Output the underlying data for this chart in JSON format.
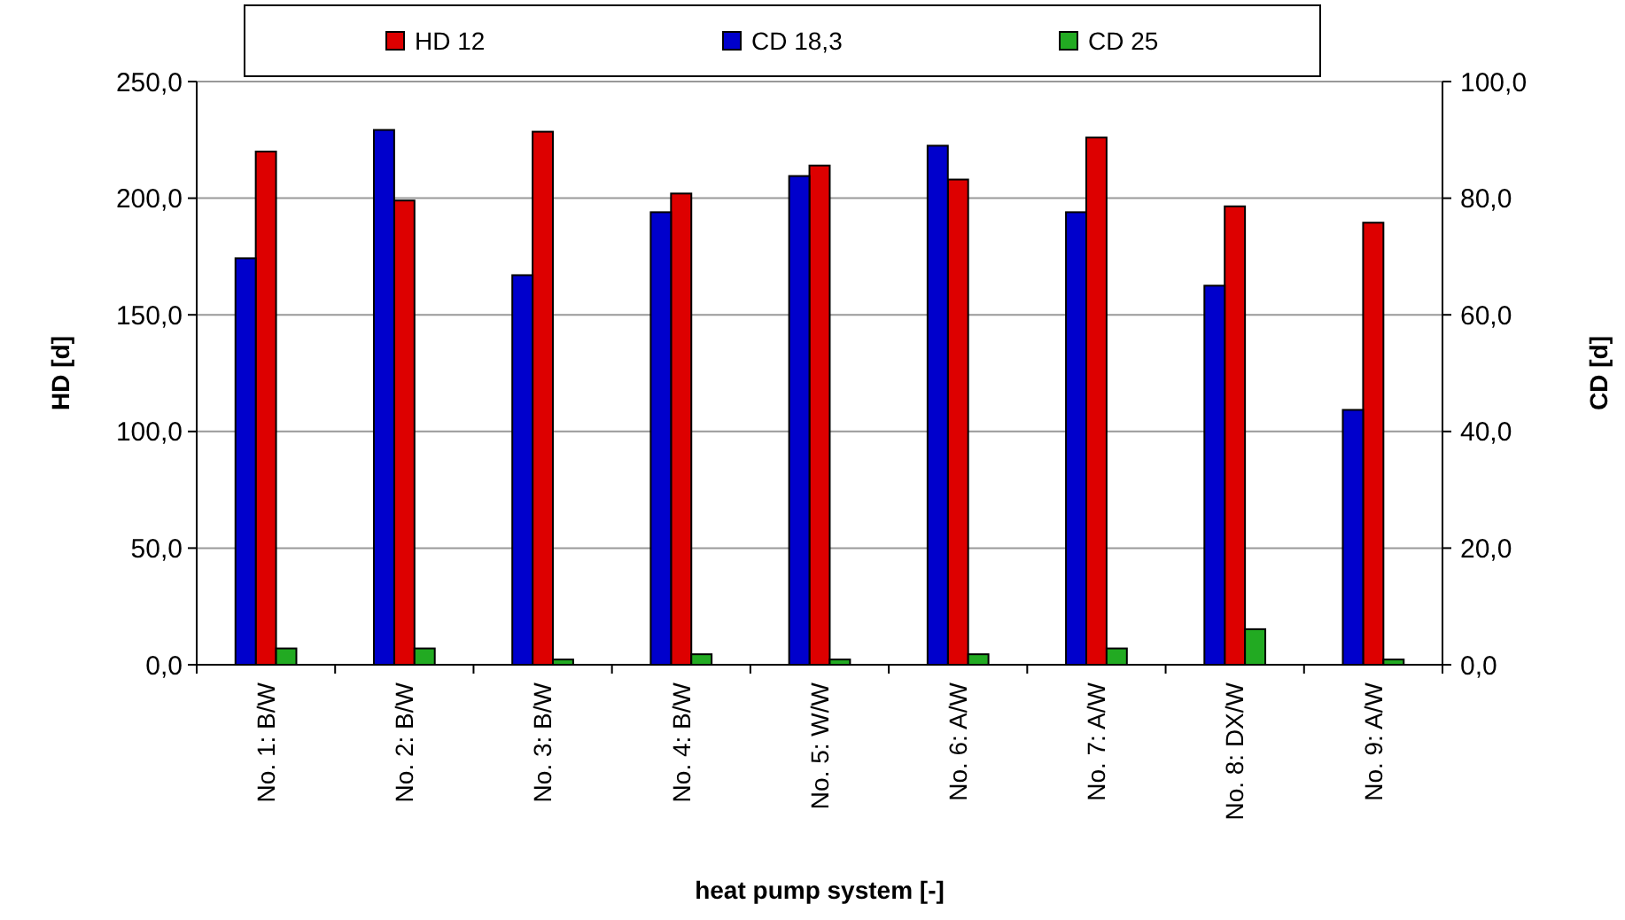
{
  "chart_data": {
    "type": "bar",
    "xlabel": "heat pump system [-]",
    "ylabel": "HD [d]",
    "y2label": "CD [d]",
    "categories": [
      "No. 1: B/W",
      "No. 2: B/W",
      "No. 3: B/W",
      "No. 4: B/W",
      "No. 5: W/W",
      "No. 6: A/W",
      "No. 7: A/W",
      "No. 8: DX/W",
      "No. 9: A/W"
    ],
    "series": [
      {
        "name": "HD 12",
        "color": "#dd0000",
        "axis": "y",
        "values": [
          220,
          199,
          228.5,
          202,
          214,
          208,
          226,
          196.5,
          189.5
        ]
      },
      {
        "name": "CD 18,3",
        "color": "#0000cc",
        "axis": "y2",
        "values": [
          69.7,
          91.7,
          66.8,
          77.6,
          83.8,
          89.0,
          77.6,
          65.0,
          43.7
        ]
      },
      {
        "name": "CD 25",
        "color": "#22aa22",
        "axis": "y2",
        "values": [
          2.8,
          2.8,
          0.9,
          1.8,
          0.9,
          1.8,
          2.8,
          6.1,
          0.9
        ]
      }
    ],
    "ylim": [
      0,
      250
    ],
    "yticks": [
      {
        "value": 0,
        "label": "0,0"
      },
      {
        "value": 50,
        "label": "50,0"
      },
      {
        "value": 100,
        "label": "100,0"
      },
      {
        "value": 150,
        "label": "150,0"
      },
      {
        "value": 200,
        "label": "200,0"
      },
      {
        "value": 250,
        "label": "250,0"
      }
    ],
    "y2lim": [
      0,
      100
    ],
    "y2ticks": [
      {
        "value": 0,
        "label": "0,0"
      },
      {
        "value": 20,
        "label": "20,0"
      },
      {
        "value": 40,
        "label": "40,0"
      },
      {
        "value": 60,
        "label": "60,0"
      },
      {
        "value": 80,
        "label": "80,0"
      },
      {
        "value": 100,
        "label": "100,0"
      }
    ],
    "grid": "y",
    "legend": "top"
  }
}
